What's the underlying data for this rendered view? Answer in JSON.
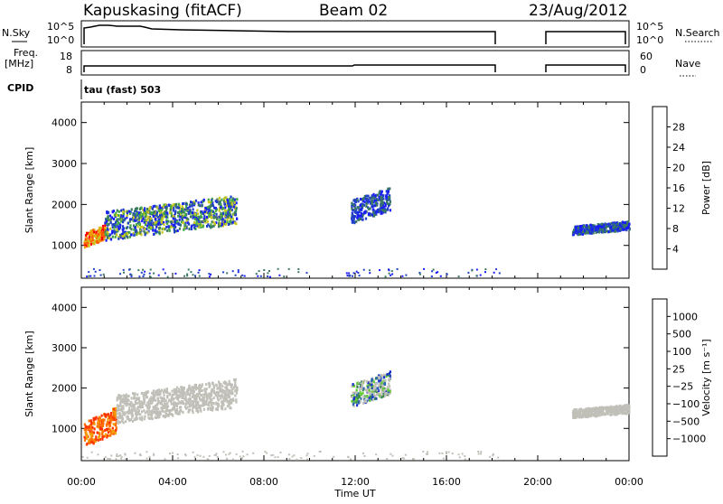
{
  "header": {
    "station": "Kapuskasing (fitACF)",
    "beam": "Beam 02",
    "date": "23/Aug/2012"
  },
  "side_labels": {
    "nsky": "N.Sky",
    "freq": "Freq.",
    "mhz": "[MHz]",
    "cpid": "CPID",
    "nsearch": "N.Search",
    "nave": "Nave",
    "cpid_value": "tau (fast) 503"
  },
  "strip_ticks": {
    "nsky_top": "10^5",
    "nsky_bottom": "10^0",
    "freq_top": "18",
    "freq_bottom": "8",
    "nave_top": "60",
    "nave_bottom": "0"
  },
  "chart_data": [
    {
      "type": "heatmap",
      "name": "power",
      "ylabel": "Slant Range [km]",
      "xlabel": "Time UT",
      "ylim": [
        200,
        4500
      ],
      "xlim_hours": [
        0,
        24
      ],
      "yticks": [
        1000,
        2000,
        3000,
        4000
      ],
      "xticks": [
        "00:00",
        "04:00",
        "08:00",
        "12:00",
        "16:00",
        "20:00",
        "00:00"
      ],
      "colorbar": {
        "label": "Power [dB]",
        "ticks": [
          "4",
          "8",
          "12",
          "16",
          "20",
          "24",
          "28"
        ],
        "colors": [
          "#1a1aff",
          "#2040c8",
          "#3a7a60",
          "#44aa44",
          "#c8c820",
          "#f0a000",
          "#ff6000",
          "#ff0000"
        ]
      },
      "scatter_bands": [
        {
          "start_hour": 0.1,
          "end_hour": 1.0,
          "range_start_km": 1000,
          "range_end_km": 1500,
          "level": "high"
        },
        {
          "start_hour": 1.0,
          "end_hour": 6.8,
          "range_start_km": 1200,
          "range_end_km": 2200,
          "level": "medium"
        },
        {
          "start_hour": 11.8,
          "end_hour": 13.5,
          "range_start_km": 1600,
          "range_end_km": 2400,
          "level": "low"
        },
        {
          "start_hour": 21.5,
          "end_hour": 24.0,
          "range_start_km": 1300,
          "range_end_km": 1600,
          "level": "low"
        }
      ]
    },
    {
      "type": "heatmap",
      "name": "velocity",
      "ylabel": "Slant Range [km]",
      "xlabel": "Time UT",
      "ylim": [
        200,
        4500
      ],
      "xlim_hours": [
        0,
        24
      ],
      "yticks": [
        1000,
        2000,
        3000,
        4000
      ],
      "xticks": [
        "00:00",
        "04:00",
        "08:00",
        "12:00",
        "16:00",
        "20:00",
        "00:00"
      ],
      "colorbar": {
        "label": "Velocity [m s⁻¹]",
        "ticks": [
          "1000",
          "500",
          "100",
          "25",
          "−25",
          "−100",
          "−500",
          "−1000"
        ],
        "colors": [
          "#1a30d0",
          "#2f6ab0",
          "#3a8a50",
          "#66cc33",
          "#c0c0b8",
          "#f0a000",
          "#ff7000",
          "#ff3000",
          "#ff0000"
        ]
      },
      "scatter_bands": [
        {
          "start_hour": 0.1,
          "end_hour": 1.5,
          "range_start_km": 600,
          "range_end_km": 1500,
          "level": "negative"
        },
        {
          "start_hour": 1.5,
          "end_hour": 6.8,
          "range_start_km": 1200,
          "range_end_km": 2200,
          "level": "ground"
        },
        {
          "start_hour": 11.8,
          "end_hour": 13.5,
          "range_start_km": 1600,
          "range_end_km": 2400,
          "level": "mixed"
        },
        {
          "start_hour": 21.5,
          "end_hour": 24.0,
          "range_start_km": 1300,
          "range_end_km": 1600,
          "level": "ground"
        }
      ]
    }
  ]
}
